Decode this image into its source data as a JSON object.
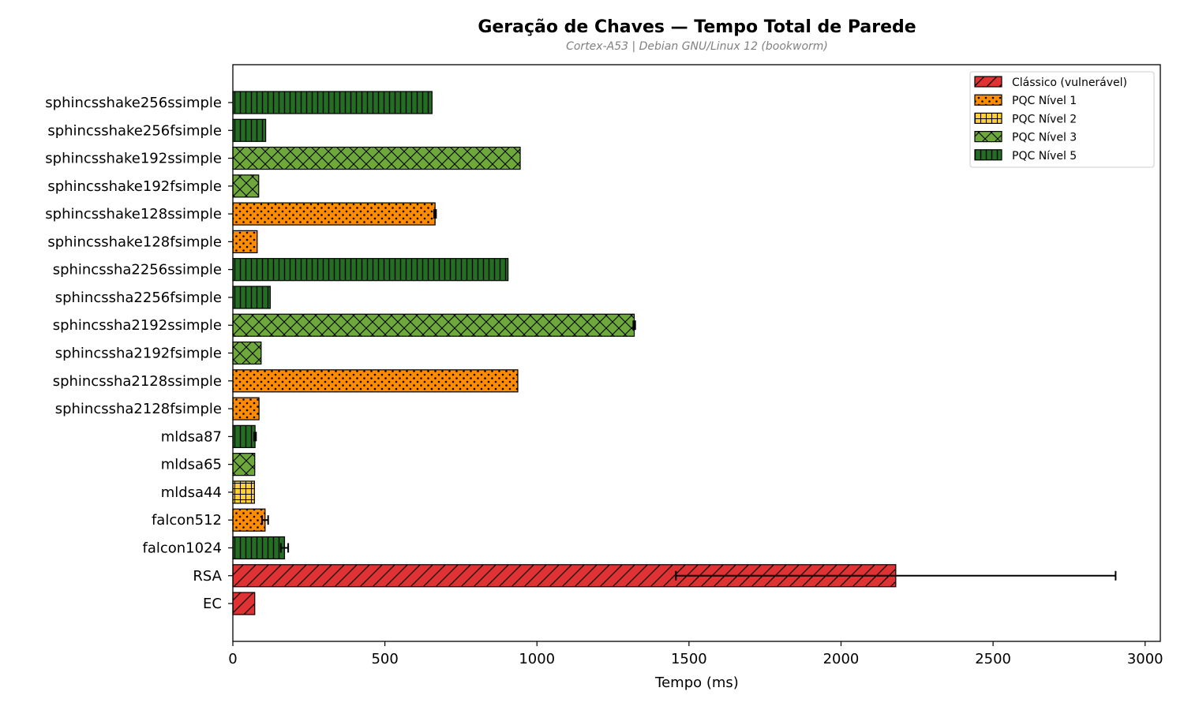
{
  "chart_data": {
    "type": "bar",
    "orientation": "horizontal",
    "title": "Geração de Chaves — Tempo Total de Parede",
    "subtitle": "Cortex-A53 | Debian GNU/Linux 12 (bookworm)",
    "xlabel": "Tempo (ms)",
    "ylabel": "",
    "xlim": [
      0,
      3050
    ],
    "xticks": [
      0,
      500,
      1000,
      1500,
      2000,
      2500,
      3000
    ],
    "grid": false,
    "legend_position": "top-right",
    "legend": [
      {
        "key": "classic",
        "label": "Clássico (vulnerável)",
        "color": "#e03232",
        "pattern": "diagonal"
      },
      {
        "key": "l1",
        "label": "PQC Nível 1",
        "color": "#ff8c00",
        "pattern": "dots"
      },
      {
        "key": "l2",
        "label": "PQC Nível 2",
        "color": "#ffd23c",
        "pattern": "grid"
      },
      {
        "key": "l3",
        "label": "PQC Nível 3",
        "color": "#6fa83a",
        "pattern": "crosshatch"
      },
      {
        "key": "l5",
        "label": "PQC Nível 5",
        "color": "#236e23",
        "pattern": "vertical"
      }
    ],
    "bars": [
      {
        "label": "sphincsshake256ssimple",
        "value": 655,
        "error": 0,
        "group": "l5"
      },
      {
        "label": "sphincsshake256fsimple",
        "value": 108,
        "error": 0,
        "group": "l5"
      },
      {
        "label": "sphincsshake192ssimple",
        "value": 945,
        "error": 0,
        "group": "l3"
      },
      {
        "label": "sphincsshake192fsimple",
        "value": 85,
        "error": 0,
        "group": "l3"
      },
      {
        "label": "sphincsshake128ssimple",
        "value": 665,
        "error": 3,
        "group": "l1"
      },
      {
        "label": "sphincsshake128fsimple",
        "value": 80,
        "error": 0,
        "group": "l1"
      },
      {
        "label": "sphincssha2256ssimple",
        "value": 905,
        "error": 0,
        "group": "l5"
      },
      {
        "label": "sphincssha2256fsimple",
        "value": 123,
        "error": 0,
        "group": "l5"
      },
      {
        "label": "sphincssha2192ssimple",
        "value": 1320,
        "error": 3,
        "group": "l3"
      },
      {
        "label": "sphincssha2192fsimple",
        "value": 93,
        "error": 0,
        "group": "l3"
      },
      {
        "label": "sphincssha2128ssimple",
        "value": 937,
        "error": 0,
        "group": "l1"
      },
      {
        "label": "sphincssha2128fsimple",
        "value": 86,
        "error": 0,
        "group": "l1"
      },
      {
        "label": "mldsa87",
        "value": 73,
        "error": 3,
        "group": "l5"
      },
      {
        "label": "mldsa65",
        "value": 72,
        "error": 0,
        "group": "l3"
      },
      {
        "label": "mldsa44",
        "value": 71,
        "error": 0,
        "group": "l2"
      },
      {
        "label": "falcon512",
        "value": 106,
        "error": 10,
        "group": "l1"
      },
      {
        "label": "falcon1024",
        "value": 170,
        "error": 12,
        "group": "l5"
      },
      {
        "label": "RSA",
        "value": 2180,
        "error": 723,
        "group": "classic"
      },
      {
        "label": "EC",
        "value": 72,
        "error": 0,
        "group": "classic"
      }
    ]
  }
}
